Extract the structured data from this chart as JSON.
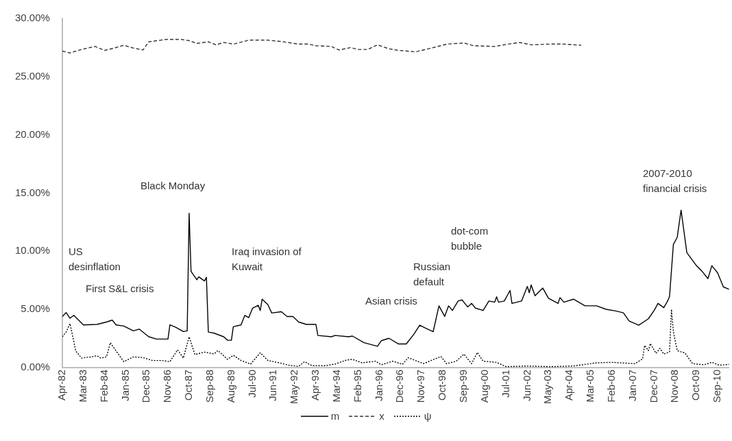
{
  "chart_data": {
    "type": "line",
    "xlim": [
      "1982-04",
      "2011-03"
    ],
    "xticks": [
      {
        "value": "1982-04",
        "label": "Apr-82"
      },
      {
        "value": "1983-03",
        "label": "Mar-83"
      },
      {
        "value": "1984-02",
        "label": "Feb-84"
      },
      {
        "value": "1985-01",
        "label": "Jan-85"
      },
      {
        "value": "1985-12",
        "label": "Dec-85"
      },
      {
        "value": "1986-11",
        "label": "Nov-86"
      },
      {
        "value": "1987-10",
        "label": "Oct-87"
      },
      {
        "value": "1988-09",
        "label": "Sep-88"
      },
      {
        "value": "1989-08",
        "label": "Aug-89"
      },
      {
        "value": "1990-07",
        "label": "Jul-90"
      },
      {
        "value": "1991-06",
        "label": "Jun-91"
      },
      {
        "value": "1992-05",
        "label": "May-92"
      },
      {
        "value": "1993-04",
        "label": "Apr-93"
      },
      {
        "value": "1994-03",
        "label": "Mar-94"
      },
      {
        "value": "1995-02",
        "label": "Feb-95"
      },
      {
        "value": "1996-01",
        "label": "Jan-96"
      },
      {
        "value": "1996-12",
        "label": "Dec-96"
      },
      {
        "value": "1997-11",
        "label": "Nov-97"
      },
      {
        "value": "1998-10",
        "label": "Oct-98"
      },
      {
        "value": "1999-09",
        "label": "Sep-99"
      },
      {
        "value": "2000-08",
        "label": "Aug-00"
      },
      {
        "value": "2001-07",
        "label": "Jul-01"
      },
      {
        "value": "2002-06",
        "label": "Jun-02"
      },
      {
        "value": "2003-05",
        "label": "May-03"
      },
      {
        "value": "2004-04",
        "label": "Apr-04"
      },
      {
        "value": "2005-03",
        "label": "Mar-05"
      },
      {
        "value": "2006-02",
        "label": "Feb-06"
      },
      {
        "value": "2007-01",
        "label": "Jan-07"
      },
      {
        "value": "2007-12",
        "label": "Dec-07"
      },
      {
        "value": "2008-11",
        "label": "Nov-08"
      },
      {
        "value": "2009-10",
        "label": "Oct-09"
      },
      {
        "value": "2010-09",
        "label": "Sep-10"
      }
    ],
    "ylim": [
      0,
      30
    ],
    "yticks": [
      {
        "value": 0,
        "label": "0.00%"
      },
      {
        "value": 5,
        "label": "5.00%"
      },
      {
        "value": 10,
        "label": "10.00%"
      },
      {
        "value": 15,
        "label": "15.00%"
      },
      {
        "value": 20,
        "label": "20.00%"
      },
      {
        "value": 25,
        "label": "25.00%"
      },
      {
        "value": 30,
        "label": "30.00%"
      }
    ],
    "grid": false,
    "legend": "bottom",
    "marker": "none",
    "annotations": [
      "US desinflation",
      "First S&L crisis",
      "Black Monday",
      "Iraq invasion of Kuwait",
      "Asian crisis",
      "Russian default",
      "dot-com bubble",
      "2007-2010 financial crisis"
    ],
    "series": [
      {
        "name": "m",
        "color": "#000000",
        "line_style": "solid",
        "x": [
          "1982-04",
          "1982-06",
          "1982-08",
          "1982-10",
          "1983-03",
          "1983-10",
          "1984-03",
          "1984-06",
          "1984-08",
          "1984-12",
          "1985-05",
          "1985-08",
          "1986-01",
          "1986-05",
          "1986-11",
          "1986-12",
          "1987-03",
          "1987-07",
          "1987-09",
          "1987-10",
          "1987-11",
          "1988-02",
          "1988-03",
          "1988-06",
          "1988-07",
          "1988-08",
          "1988-11",
          "1989-04",
          "1989-06",
          "1989-08",
          "1989-09",
          "1990-01",
          "1990-03",
          "1990-05",
          "1990-07",
          "1990-10",
          "1990-11",
          "1990-12",
          "1991-03",
          "1991-05",
          "1991-10",
          "1992-01",
          "1992-04",
          "1992-07",
          "1992-11",
          "1993-04",
          "1993-05",
          "1993-12",
          "1994-02",
          "1994-09",
          "1994-11",
          "1995-05",
          "1995-12",
          "1996-02",
          "1996-06",
          "1996-11",
          "1997-03",
          "1997-07",
          "1997-10",
          "1998-01",
          "1998-05",
          "1998-08",
          "1998-11",
          "1999-01",
          "1999-03",
          "1999-06",
          "1999-08",
          "1999-11",
          "2000-01",
          "2000-03",
          "2000-07",
          "2000-10",
          "2001-01",
          "2001-02",
          "2001-03",
          "2001-06",
          "2001-09",
          "2001-10",
          "2002-03",
          "2002-06",
          "2002-07",
          "2002-08",
          "2002-10",
          "2003-02",
          "2003-05",
          "2003-10",
          "2003-11",
          "2004-01",
          "2004-06",
          "2004-12",
          "2005-06",
          "2005-11",
          "2006-04",
          "2006-08",
          "2006-11",
          "2007-04",
          "2007-09",
          "2007-12",
          "2008-02",
          "2008-05",
          "2008-07",
          "2008-08",
          "2008-10",
          "2008-12",
          "2009-02",
          "2009-05",
          "2009-10",
          "2010-01",
          "2010-04",
          "2010-06",
          "2010-09",
          "2010-12",
          "2011-03"
        ],
        "values": [
          4.39,
          4.73,
          4.24,
          4.49,
          3.67,
          3.71,
          3.92,
          4.08,
          3.67,
          3.57,
          3.16,
          3.31,
          2.65,
          2.45,
          2.45,
          3.67,
          3.47,
          3.1,
          3.16,
          13.27,
          8.27,
          7.55,
          7.8,
          7.45,
          7.76,
          3.06,
          2.96,
          2.65,
          2.35,
          2.35,
          3.51,
          3.67,
          4.49,
          4.29,
          5.1,
          5.35,
          4.9,
          5.88,
          5.41,
          4.69,
          4.8,
          4.39,
          4.39,
          3.92,
          3.71,
          3.71,
          2.76,
          2.65,
          2.76,
          2.65,
          2.71,
          2.14,
          1.83,
          2.31,
          2.52,
          2.03,
          2.03,
          2.88,
          3.65,
          3.39,
          3.08,
          5.31,
          4.4,
          5.31,
          4.91,
          5.72,
          5.82,
          5.21,
          5.52,
          5.11,
          4.91,
          5.72,
          5.62,
          6.09,
          5.62,
          5.72,
          6.63,
          5.52,
          5.72,
          6.98,
          6.43,
          7.1,
          6.17,
          6.84,
          5.96,
          5.52,
          6.02,
          5.62,
          5.88,
          5.31,
          5.31,
          5.01,
          4.87,
          4.71,
          4.0,
          3.65,
          4.2,
          4.91,
          5.52,
          5.15,
          5.72,
          6.13,
          10.59,
          11.2,
          13.53,
          9.88,
          8.76,
          8.26,
          7.65,
          8.76,
          8.15,
          6.94,
          6.73
        ]
      },
      {
        "name": "x",
        "color": "#333333",
        "line_style": "dashed",
        "x": [
          "1982-04",
          "1982-08",
          "1983-02",
          "1983-09",
          "1984-02",
          "1984-07",
          "1984-12",
          "1985-05",
          "1985-10",
          "1986-01",
          "1986-10",
          "1987-06",
          "1987-10",
          "1988-02",
          "1988-08",
          "1988-12",
          "1989-04",
          "1989-09",
          "1990-05",
          "1991-03",
          "1991-11",
          "1992-07",
          "1992-12",
          "1993-04",
          "1993-12",
          "1994-04",
          "1994-10",
          "1995-02",
          "1995-05",
          "1995-07",
          "1995-12",
          "1996-06",
          "1996-11",
          "1997-08",
          "1998-05",
          "1998-12",
          "1999-09",
          "2000-02",
          "2001-01",
          "2001-08",
          "2002-02",
          "2002-08",
          "2003-06",
          "2004-01",
          "2004-10"
        ],
        "values": [
          27.2,
          27.04,
          27.34,
          27.6,
          27.26,
          27.46,
          27.7,
          27.46,
          27.3,
          28.0,
          28.2,
          28.2,
          28.1,
          27.86,
          28.0,
          27.74,
          27.94,
          27.8,
          28.14,
          28.14,
          28.0,
          27.8,
          27.8,
          27.66,
          27.6,
          27.3,
          27.5,
          27.34,
          27.34,
          27.34,
          27.74,
          27.4,
          27.26,
          27.14,
          27.5,
          27.8,
          27.9,
          27.66,
          27.6,
          27.8,
          27.94,
          27.74,
          27.8,
          27.8,
          27.7
        ]
      },
      {
        "name": "ψ",
        "color": "#000000",
        "line_style": "dotted",
        "x": [
          "1982-04",
          "1982-06",
          "1982-08",
          "1982-10",
          "1982-11",
          "1983-02",
          "1983-07",
          "1983-10",
          "1983-12",
          "1984-03",
          "1984-05",
          "1984-08",
          "1984-12",
          "1985-05",
          "1985-10",
          "1986-03",
          "1986-08",
          "1986-12",
          "1987-04",
          "1987-07",
          "1987-10",
          "1988-01",
          "1988-06",
          "1988-11",
          "1989-01",
          "1989-06",
          "1989-09",
          "1990-01",
          "1990-06",
          "1990-11",
          "1991-03",
          "1991-09",
          "1992-02",
          "1992-07",
          "1992-10",
          "1993-02",
          "1993-09",
          "1994-02",
          "1994-08",
          "1994-11",
          "1995-04",
          "1995-11",
          "1996-02",
          "1996-08",
          "1997-01",
          "1997-04",
          "1997-12",
          "1998-09",
          "1998-12",
          "1999-05",
          "1999-09",
          "2000-01",
          "2000-04",
          "2000-07",
          "2001-02",
          "2001-07",
          "2002-06",
          "2003-06",
          "2004-06",
          "2005-06",
          "2006-02",
          "2007-02",
          "2007-06",
          "2007-07",
          "2007-09",
          "2007-10",
          "2008-01",
          "2008-03",
          "2008-05",
          "2008-08",
          "2008-09",
          "2008-10",
          "2008-12",
          "2009-04",
          "2009-08",
          "2010-02",
          "2010-06",
          "2010-10",
          "2011-03"
        ],
        "values": [
          2.65,
          3.06,
          3.78,
          2.24,
          1.43,
          0.82,
          0.92,
          1.02,
          0.82,
          0.92,
          2.14,
          1.43,
          0.51,
          0.92,
          0.86,
          0.61,
          0.61,
          0.51,
          1.53,
          0.82,
          2.65,
          1.12,
          1.33,
          1.18,
          1.47,
          0.71,
          1.06,
          0.61,
          0.31,
          1.27,
          0.61,
          0.41,
          0.2,
          0.1,
          0.51,
          0.16,
          0.16,
          0.31,
          0.65,
          0.71,
          0.41,
          0.55,
          0.24,
          0.55,
          0.28,
          0.85,
          0.34,
          0.95,
          0.34,
          0.55,
          1.16,
          0.34,
          1.3,
          0.55,
          0.45,
          0.08,
          0.14,
          0.08,
          0.14,
          0.41,
          0.45,
          0.34,
          0.75,
          1.91,
          1.46,
          2.07,
          1.22,
          1.66,
          1.16,
          1.36,
          5.01,
          3.08,
          1.46,
          1.26,
          0.34,
          0.24,
          0.45,
          0.2,
          0.28
        ]
      }
    ]
  }
}
